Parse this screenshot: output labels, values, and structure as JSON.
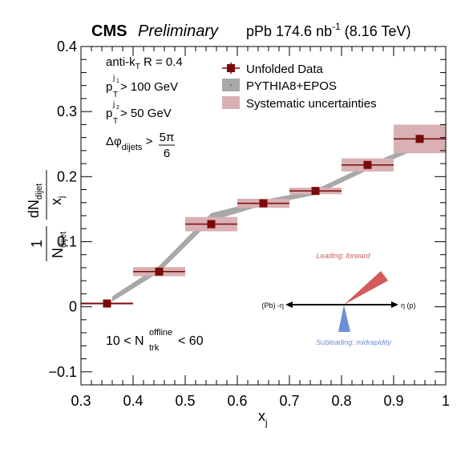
{
  "header": {
    "experiment": "CMS",
    "status": "Preliminary",
    "lumi_pre": "pPb 174.6 nb",
    "lumi_exp": "-1",
    "lumi_post": " (8.16 TeV)"
  },
  "cuts": {
    "algo_pre": "anti-k",
    "algo_sub": "T",
    "algo_post": " R = 0.4",
    "pt1_base": "p",
    "pt1_sub": "T",
    "pt1_sup": "j",
    "pt1_supsub": "1",
    "pt1_cut": " > 100 GeV",
    "pt2_base": "p",
    "pt2_sub": "T",
    "pt2_sup": "j",
    "pt2_supsub": "2",
    "pt2_cut": " > 50 GeV",
    "dphi_base": "Δφ",
    "dphi_sub": "dijets",
    "dphi_gt": " > ",
    "dphi_num": "5π",
    "dphi_den": "6"
  },
  "multiplicity": {
    "pre": "10 < N",
    "sup": "offline",
    "sub": "trk",
    "post": " < 60"
  },
  "diagram": {
    "leading_label": "Leading: forward",
    "subleading_label": "Subleading: midrapidity",
    "left_label": "(Pb) -η",
    "right_label": "η (p)",
    "colors": {
      "leading": "#d45a5e",
      "subleading": "#6f8fd4",
      "axis": "#000000"
    }
  },
  "chart_data": {
    "type": "scatter",
    "xlabel": "x",
    "xlabel_sub": "j",
    "ylabel": {
      "frac_num": "1",
      "frac_den_base": "N",
      "frac_den_sub": "dijet",
      "dn_base": "dN",
      "dn_sub": "dijet",
      "dx_base": "x",
      "dx_sub": "j"
    },
    "xlim": [
      0.3,
      1.0
    ],
    "ylim": [
      -0.12,
      0.4
    ],
    "xticks": [
      "0.3",
      "0.4",
      "0.5",
      "0.6",
      "0.7",
      "0.8",
      "0.9",
      "1"
    ],
    "xtick_values": [
      0.3,
      0.4,
      0.5,
      0.6,
      0.7,
      0.8,
      0.9,
      1.0
    ],
    "yticks": [
      "−0.1",
      "0",
      "0.1",
      "0.2",
      "0.3",
      "0.4"
    ],
    "ytick_values": [
      -0.1,
      0.0,
      0.1,
      0.2,
      0.3,
      0.4
    ],
    "legend": {
      "placement": "top-right",
      "entries": [
        "Unfolded Data",
        "PYTHIA8+EPOS",
        "Systematic uncertainties"
      ]
    },
    "series": [
      {
        "name": "Unfolded Data",
        "color": "#7a0a0a",
        "x": [
          0.35,
          0.45,
          0.55,
          0.65,
          0.75,
          0.85,
          0.95
        ],
        "xerr_low": [
          0.3,
          0.4,
          0.5,
          0.6,
          0.7,
          0.8,
          0.9
        ],
        "xerr_high": [
          0.4,
          0.5,
          0.6,
          0.7,
          0.8,
          0.9,
          1.0
        ],
        "y": [
          0.005,
          0.054,
          0.127,
          0.159,
          0.178,
          0.218,
          0.258
        ],
        "syst": [
          0.002,
          0.007,
          0.011,
          0.007,
          0.005,
          0.01,
          0.022
        ],
        "syst_color": "#d9b0b3"
      },
      {
        "name": "PYTHIA8+EPOS",
        "color": "#a8a8a8",
        "x": [
          0.36,
          0.45,
          0.55,
          0.65,
          0.75,
          0.85,
          0.95
        ],
        "y": [
          0.012,
          0.058,
          0.138,
          0.16,
          0.176,
          0.214,
          0.248
        ],
        "band": [
          0.004,
          0.005,
          0.006,
          0.004,
          0.004,
          0.004,
          0.004
        ]
      }
    ]
  }
}
